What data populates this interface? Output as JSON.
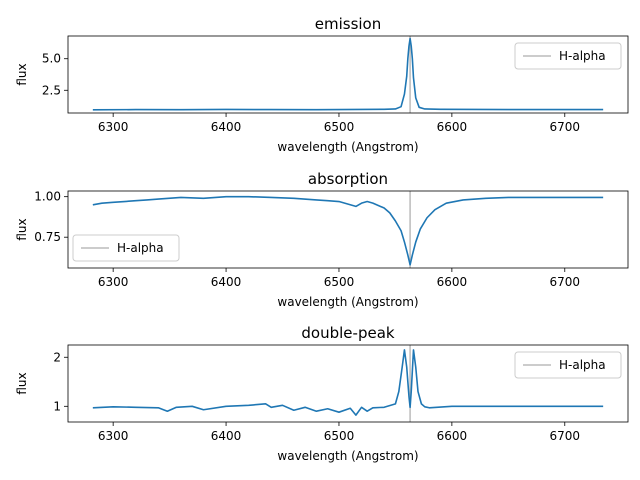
{
  "chart_data": [
    {
      "type": "line",
      "title": "emission",
      "xlabel": "wavelength (Angstrom)",
      "ylabel": "flux",
      "xlim": [
        6260,
        6756
      ],
      "ylim": [
        0.7,
        6.8
      ],
      "xticks": [
        6300,
        6400,
        6500,
        6600,
        6700
      ],
      "yticks": [
        2.5,
        5.0
      ],
      "ytick_labels": [
        "2.5",
        "5.0"
      ],
      "legend": {
        "label": "H-alpha",
        "loc": "upper right"
      },
      "marker_line": {
        "x": 6563,
        "color": "#bbbbbb"
      },
      "series": [
        {
          "color": "#1f77b4",
          "x": [
            6282,
            6320,
            6360,
            6400,
            6440,
            6480,
            6500,
            6520,
            6540,
            6550,
            6555,
            6558,
            6560,
            6561,
            6562,
            6563,
            6564,
            6565,
            6566,
            6568,
            6571,
            6576,
            6590,
            6620,
            6660,
            6700,
            6734
          ],
          "y": [
            0.95,
            0.97,
            0.96,
            0.98,
            0.97,
            0.96,
            0.97,
            0.98,
            0.99,
            1.02,
            1.2,
            2.2,
            3.6,
            5.0,
            6.0,
            6.6,
            6.0,
            5.0,
            3.5,
            1.9,
            1.15,
            1.02,
            0.99,
            0.98,
            0.97,
            0.97,
            0.97
          ]
        }
      ]
    },
    {
      "type": "line",
      "title": "absorption",
      "xlabel": "wavelength (Angstrom)",
      "ylabel": "flux",
      "xlim": [
        6260,
        6756
      ],
      "ylim": [
        0.56,
        1.035
      ],
      "xticks": [
        6300,
        6400,
        6500,
        6600,
        6700
      ],
      "yticks": [
        0.75,
        1.0
      ],
      "ytick_labels": [
        "0.75",
        "1.00"
      ],
      "legend": {
        "label": "H-alpha",
        "loc": "lower left"
      },
      "marker_line": {
        "x": 6563,
        "color": "#bbbbbb"
      },
      "series": [
        {
          "color": "#1f77b4",
          "x": [
            6282,
            6290,
            6300,
            6310,
            6320,
            6330,
            6340,
            6360,
            6380,
            6400,
            6420,
            6440,
            6460,
            6480,
            6490,
            6500,
            6510,
            6515,
            6520,
            6525,
            6530,
            6540,
            6545,
            6550,
            6555,
            6558,
            6561,
            6563,
            6565,
            6568,
            6572,
            6578,
            6585,
            6595,
            6610,
            6630,
            6650,
            6680,
            6700,
            6720,
            6734
          ],
          "y": [
            0.95,
            0.96,
            0.965,
            0.97,
            0.975,
            0.98,
            0.985,
            0.995,
            0.99,
            1.0,
            1.0,
            0.995,
            0.99,
            0.98,
            0.975,
            0.97,
            0.95,
            0.94,
            0.96,
            0.97,
            0.96,
            0.93,
            0.9,
            0.85,
            0.79,
            0.72,
            0.64,
            0.58,
            0.64,
            0.72,
            0.8,
            0.87,
            0.92,
            0.96,
            0.98,
            0.99,
            0.995,
            0.995,
            0.995,
            0.995,
            0.995
          ]
        }
      ]
    },
    {
      "type": "line",
      "title": "double-peak",
      "xlabel": "wavelength (Angstrom)",
      "ylabel": "flux",
      "xlim": [
        6260,
        6756
      ],
      "ylim": [
        0.68,
        2.25
      ],
      "xticks": [
        6300,
        6400,
        6500,
        6600,
        6700
      ],
      "yticks": [
        1,
        2
      ],
      "ytick_labels": [
        "1",
        "2"
      ],
      "legend": {
        "label": "H-alpha",
        "loc": "upper right"
      },
      "marker_line": {
        "x": 6563,
        "color": "#bbbbbb"
      },
      "series": [
        {
          "color": "#1f77b4",
          "x": [
            6282,
            6300,
            6320,
            6340,
            6348,
            6356,
            6370,
            6380,
            6400,
            6420,
            6435,
            6440,
            6450,
            6460,
            6470,
            6480,
            6490,
            6500,
            6510,
            6515,
            6520,
            6525,
            6530,
            6540,
            6550,
            6553,
            6556,
            6558,
            6560,
            6562,
            6563,
            6564,
            6566,
            6568,
            6570,
            6573,
            6576,
            6580,
            6600,
            6620,
            6660,
            6700,
            6734
          ],
          "y": [
            0.97,
            0.99,
            0.98,
            0.97,
            0.9,
            0.98,
            1.0,
            0.93,
            1.0,
            1.02,
            1.05,
            0.98,
            1.02,
            0.92,
            0.98,
            0.9,
            0.95,
            0.88,
            0.96,
            0.82,
            0.98,
            0.9,
            0.97,
            0.98,
            1.05,
            1.3,
            1.8,
            2.15,
            1.8,
            1.2,
            0.98,
            1.3,
            2.15,
            1.8,
            1.3,
            1.05,
            0.99,
            0.97,
            1.0,
            1.0,
            1.0,
            1.0,
            1.0
          ]
        }
      ]
    }
  ]
}
